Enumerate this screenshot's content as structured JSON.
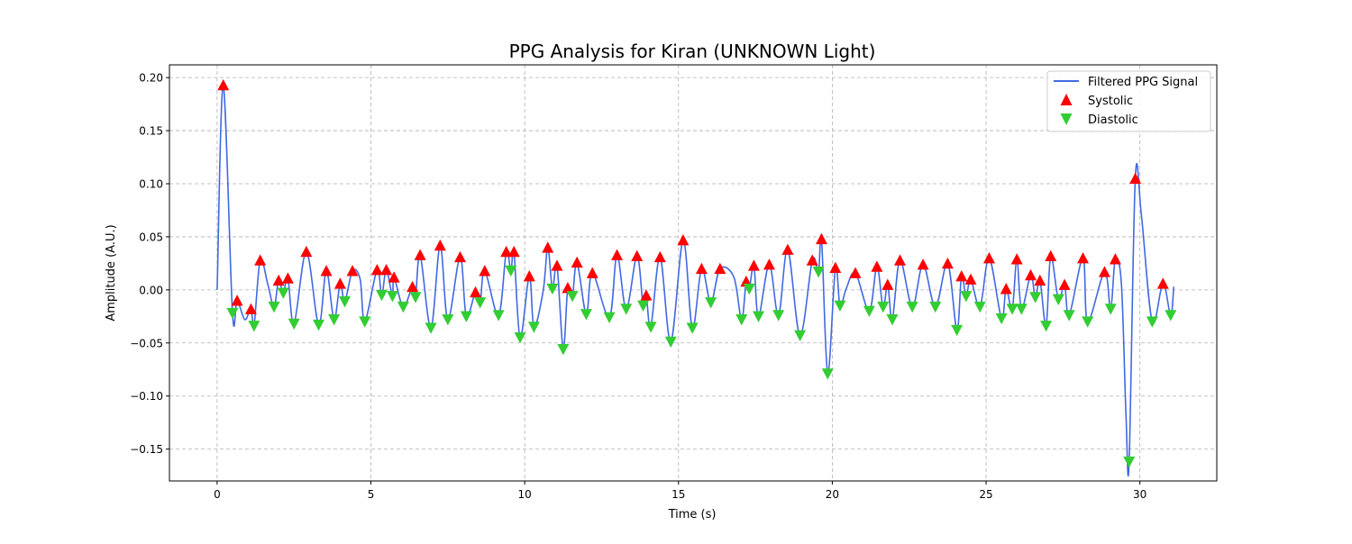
{
  "chart_data": {
    "type": "line",
    "title": "PPG Analysis for Kiran (UNKNOWN Light)",
    "xlabel": "Time (s)",
    "ylabel": "Amplitude (A.U.)",
    "xlim": [
      -1.55,
      32.5
    ],
    "ylim": [
      -0.18,
      0.212
    ],
    "xticks": [
      0,
      5,
      10,
      15,
      20,
      25,
      30
    ],
    "xtick_labels": [
      "0",
      "5",
      "10",
      "15",
      "20",
      "25",
      "30"
    ],
    "yticks": [
      0.2,
      0.15,
      0.1,
      0.05,
      0.0,
      -0.05,
      -0.1,
      -0.15
    ],
    "ytick_labels": [
      "0.20",
      "0.15",
      "0.10",
      "0.05",
      "0.00",
      "−0.05",
      "−0.10",
      "−0.15"
    ],
    "grid": true,
    "legend_position": "top-right",
    "legend": [
      "Filtered PPG Signal",
      "Systolic",
      "Diastolic"
    ],
    "colors": {
      "signal": "#4169e1",
      "systolic": "#ff0000",
      "diastolic": "#32cd32"
    },
    "series": [
      {
        "name": "Filtered PPG Signal",
        "kind": "line",
        "points": [
          [
            0.0,
            0.0
          ],
          [
            0.2,
            0.193
          ],
          [
            0.5,
            -0.022
          ],
          [
            0.65,
            -0.01
          ],
          [
            0.9,
            -0.028
          ],
          [
            1.1,
            -0.018
          ],
          [
            1.2,
            -0.034
          ],
          [
            1.4,
            0.028
          ],
          [
            1.65,
            0.005
          ],
          [
            1.85,
            -0.016
          ],
          [
            2.0,
            0.009
          ],
          [
            2.15,
            -0.003
          ],
          [
            2.3,
            0.011
          ],
          [
            2.5,
            -0.032
          ],
          [
            2.9,
            0.036
          ],
          [
            3.3,
            -0.033
          ],
          [
            3.55,
            0.018
          ],
          [
            3.8,
            -0.028
          ],
          [
            4.0,
            0.006
          ],
          [
            4.15,
            -0.011
          ],
          [
            4.4,
            0.018
          ],
          [
            4.65,
            0.01
          ],
          [
            4.8,
            -0.03
          ],
          [
            5.2,
            0.019
          ],
          [
            5.35,
            -0.005
          ],
          [
            5.5,
            0.019
          ],
          [
            5.7,
            -0.006
          ],
          [
            5.75,
            0.012
          ],
          [
            6.05,
            -0.016
          ],
          [
            6.35,
            0.003
          ],
          [
            6.45,
            -0.007
          ],
          [
            6.6,
            0.033
          ],
          [
            6.95,
            -0.036
          ],
          [
            7.25,
            0.042
          ],
          [
            7.5,
            -0.028
          ],
          [
            7.9,
            0.031
          ],
          [
            8.1,
            -0.025
          ],
          [
            8.4,
            -0.002
          ],
          [
            8.55,
            -0.012
          ],
          [
            8.7,
            0.018
          ],
          [
            9.15,
            -0.024
          ],
          [
            9.4,
            0.036
          ],
          [
            9.55,
            0.018
          ],
          [
            9.65,
            0.036
          ],
          [
            9.85,
            -0.045
          ],
          [
            10.15,
            0.013
          ],
          [
            10.3,
            -0.035
          ],
          [
            10.6,
            -0.001
          ],
          [
            10.75,
            0.04
          ],
          [
            10.9,
            0.001
          ],
          [
            11.05,
            0.023
          ],
          [
            11.25,
            -0.056
          ],
          [
            11.4,
            0.002
          ],
          [
            11.55,
            -0.006
          ],
          [
            11.7,
            0.026
          ],
          [
            12.0,
            -0.023
          ],
          [
            12.2,
            0.016
          ],
          [
            12.75,
            -0.026
          ],
          [
            13.0,
            0.033
          ],
          [
            13.3,
            -0.018
          ],
          [
            13.65,
            0.032
          ],
          [
            13.85,
            -0.015
          ],
          [
            13.95,
            -0.005
          ],
          [
            14.1,
            -0.035
          ],
          [
            14.4,
            0.031
          ],
          [
            14.75,
            -0.049
          ],
          [
            15.15,
            0.047
          ],
          [
            15.45,
            -0.036
          ],
          [
            15.75,
            0.02
          ],
          [
            16.05,
            -0.012
          ],
          [
            16.35,
            0.02
          ],
          [
            16.8,
            0.012
          ],
          [
            17.05,
            -0.028
          ],
          [
            17.2,
            0.008
          ],
          [
            17.3,
            0.001
          ],
          [
            17.45,
            0.023
          ],
          [
            17.6,
            -0.025
          ],
          [
            17.95,
            0.024
          ],
          [
            18.25,
            -0.024
          ],
          [
            18.55,
            0.038
          ],
          [
            18.95,
            -0.043
          ],
          [
            19.35,
            0.028
          ],
          [
            19.55,
            0.017
          ],
          [
            19.65,
            0.048
          ],
          [
            19.85,
            -0.079
          ],
          [
            20.1,
            0.021
          ],
          [
            20.25,
            -0.015
          ],
          [
            20.45,
            0.001
          ],
          [
            20.75,
            0.016
          ],
          [
            21.2,
            -0.02
          ],
          [
            21.45,
            0.022
          ],
          [
            21.65,
            -0.016
          ],
          [
            21.8,
            0.005
          ],
          [
            21.95,
            -0.028
          ],
          [
            22.2,
            0.028
          ],
          [
            22.6,
            -0.016
          ],
          [
            22.95,
            0.024
          ],
          [
            23.35,
            -0.016
          ],
          [
            23.75,
            0.025
          ],
          [
            24.05,
            -0.038
          ],
          [
            24.2,
            0.013
          ],
          [
            24.35,
            -0.006
          ],
          [
            24.5,
            0.01
          ],
          [
            24.8,
            -0.016
          ],
          [
            25.1,
            0.03
          ],
          [
            25.5,
            -0.027
          ],
          [
            25.65,
            0.001
          ],
          [
            25.85,
            -0.018
          ],
          [
            26.0,
            0.029
          ],
          [
            26.15,
            -0.018
          ],
          [
            26.45,
            0.014
          ],
          [
            26.6,
            -0.007
          ],
          [
            26.75,
            0.009
          ],
          [
            26.95,
            -0.034
          ],
          [
            27.1,
            0.032
          ],
          [
            27.35,
            -0.009
          ],
          [
            27.55,
            0.005
          ],
          [
            27.7,
            -0.024
          ],
          [
            28.15,
            0.03
          ],
          [
            28.3,
            -0.03
          ],
          [
            28.85,
            0.017
          ],
          [
            29.05,
            -0.018
          ],
          [
            29.2,
            0.029
          ],
          [
            29.4,
            0.005
          ],
          [
            29.55,
            -0.12
          ],
          [
            29.65,
            -0.162
          ],
          [
            29.85,
            0.105
          ],
          [
            30.05,
            0.07
          ],
          [
            30.4,
            -0.03
          ],
          [
            30.75,
            0.006
          ],
          [
            31.0,
            -0.024
          ],
          [
            31.1,
            0.003
          ]
        ]
      },
      {
        "name": "Systolic",
        "kind": "marker",
        "marker": "triangle-up",
        "x": [
          0.2,
          0.65,
          1.1,
          1.4,
          2.0,
          2.3,
          2.9,
          3.55,
          4.0,
          4.4,
          5.2,
          5.5,
          5.75,
          6.35,
          6.6,
          7.25,
          7.9,
          8.4,
          8.7,
          9.4,
          9.65,
          10.15,
          10.75,
          11.05,
          11.4,
          11.7,
          12.2,
          13.0,
          13.65,
          13.95,
          14.4,
          15.15,
          15.75,
          16.35,
          17.2,
          17.45,
          17.95,
          18.55,
          19.35,
          19.65,
          20.1,
          20.75,
          21.45,
          21.8,
          22.2,
          22.95,
          23.75,
          24.2,
          24.5,
          25.1,
          25.65,
          26.0,
          26.45,
          26.75,
          27.1,
          27.55,
          28.15,
          28.85,
          29.2,
          29.85,
          30.75
        ],
        "y": [
          0.193,
          -0.01,
          -0.018,
          0.028,
          0.009,
          0.011,
          0.036,
          0.018,
          0.006,
          0.018,
          0.019,
          0.019,
          0.012,
          0.003,
          0.033,
          0.042,
          0.031,
          -0.002,
          0.018,
          0.036,
          0.036,
          0.013,
          0.04,
          0.023,
          0.002,
          0.026,
          0.016,
          0.033,
          0.032,
          -0.005,
          0.031,
          0.047,
          0.02,
          0.02,
          0.008,
          0.023,
          0.024,
          0.038,
          0.028,
          0.048,
          0.021,
          0.016,
          0.022,
          0.005,
          0.028,
          0.024,
          0.025,
          0.013,
          0.01,
          0.03,
          0.001,
          0.029,
          0.014,
          0.009,
          0.032,
          0.005,
          0.03,
          0.017,
          0.029,
          0.105,
          0.006
        ]
      },
      {
        "name": "Diastolic",
        "kind": "marker",
        "marker": "triangle-down",
        "x": [
          0.5,
          1.2,
          1.85,
          2.15,
          2.5,
          3.3,
          3.8,
          4.15,
          4.8,
          5.35,
          5.7,
          6.05,
          6.45,
          6.95,
          7.5,
          8.1,
          8.55,
          9.15,
          9.55,
          9.85,
          10.3,
          10.9,
          11.25,
          11.55,
          12.0,
          12.75,
          13.3,
          13.85,
          14.1,
          14.75,
          15.45,
          16.05,
          17.05,
          17.3,
          17.6,
          18.25,
          18.95,
          19.55,
          19.85,
          20.25,
          21.2,
          21.65,
          21.95,
          22.6,
          23.35,
          24.05,
          24.35,
          24.8,
          25.5,
          25.85,
          26.15,
          26.6,
          26.95,
          27.35,
          27.7,
          28.3,
          29.05,
          29.65,
          30.4,
          31.0
        ],
        "y": [
          -0.022,
          -0.034,
          -0.016,
          -0.003,
          -0.032,
          -0.033,
          -0.028,
          -0.011,
          -0.03,
          -0.005,
          -0.006,
          -0.016,
          -0.007,
          -0.036,
          -0.028,
          -0.025,
          -0.012,
          -0.024,
          0.018,
          -0.045,
          -0.035,
          0.001,
          -0.056,
          -0.006,
          -0.023,
          -0.026,
          -0.018,
          -0.015,
          -0.035,
          -0.049,
          -0.036,
          -0.012,
          -0.028,
          0.001,
          -0.025,
          -0.024,
          -0.043,
          0.017,
          -0.079,
          -0.015,
          -0.02,
          -0.016,
          -0.028,
          -0.016,
          -0.016,
          -0.038,
          -0.006,
          -0.016,
          -0.027,
          -0.018,
          -0.018,
          -0.007,
          -0.034,
          -0.009,
          -0.024,
          -0.03,
          -0.018,
          -0.162,
          -0.03,
          -0.024
        ]
      }
    ]
  }
}
